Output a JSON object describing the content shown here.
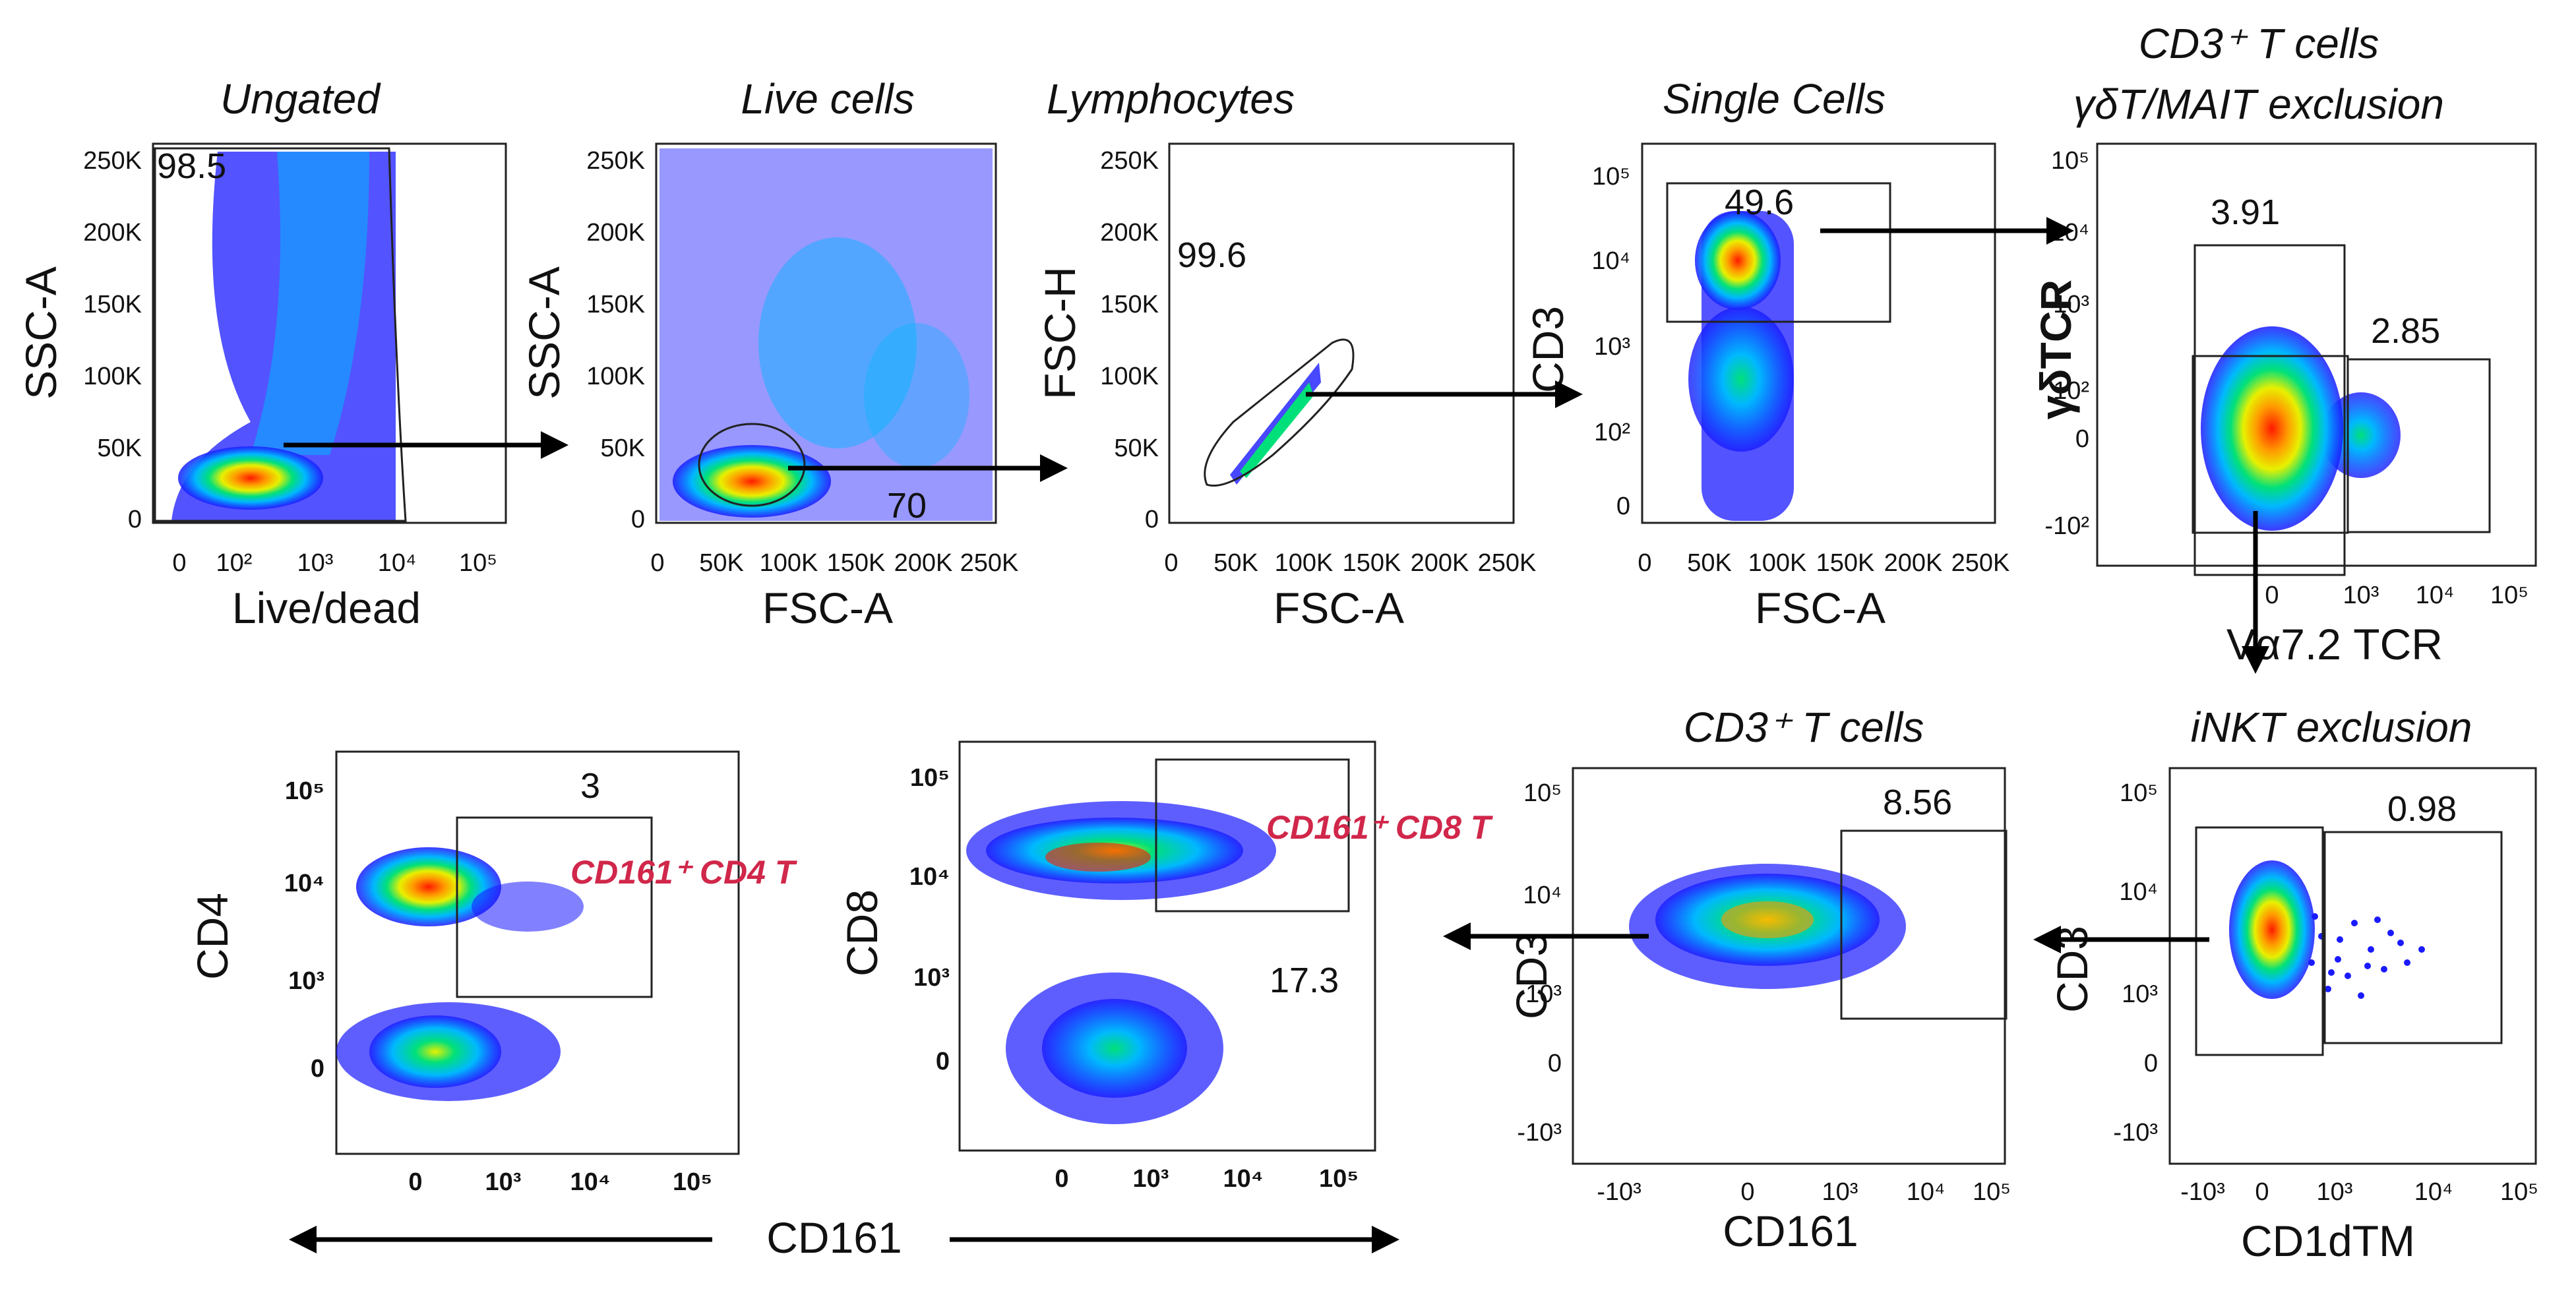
{
  "figure": {
    "panels": [
      {
        "id": "ungated",
        "title": "Ungated",
        "xlabel": "Live/dead",
        "ylabel": "SSC-A",
        "xticks": [
          "0",
          "10²",
          "10³",
          "10⁴",
          "10⁵"
        ],
        "yticks": [
          "0",
          "50K",
          "100K",
          "150K",
          "200K",
          "250K"
        ],
        "gates": [
          {
            "value": "98.5"
          }
        ]
      },
      {
        "id": "live",
        "title": "Live cells",
        "xlabel": "FSC-A",
        "ylabel": "SSC-A",
        "xticks": [
          "0",
          "50K",
          "100K",
          "150K",
          "200K",
          "250K"
        ],
        "yticks": [
          "0",
          "50K",
          "100K",
          "150K",
          "200K",
          "250K"
        ],
        "gates": [
          {
            "value": "70"
          }
        ]
      },
      {
        "id": "lymph",
        "title": "Lymphocytes",
        "xlabel": "FSC-A",
        "ylabel": "FSC-H",
        "xticks": [
          "0",
          "50K",
          "100K",
          "150K",
          "200K",
          "250K"
        ],
        "yticks": [
          "0",
          "50K",
          "100K",
          "150K",
          "200K",
          "250K"
        ],
        "gates": [
          {
            "value": "99.6"
          }
        ]
      },
      {
        "id": "single",
        "title": "Single Cells",
        "xlabel": "FSC-A",
        "ylabel": "CD3",
        "xticks": [
          "0",
          "50K",
          "100K",
          "150K",
          "200K",
          "250K"
        ],
        "yticks": [
          "0",
          "10²",
          "10³",
          "10⁴",
          "10⁵"
        ],
        "gates": [
          {
            "value": "49.6"
          }
        ]
      },
      {
        "id": "gdmait",
        "title_line1": "CD3⁺ T cells",
        "title_line2": "γδT/MAIT exclusion",
        "xlabel": "Vα7.2 TCR",
        "ylabel": "γδTCR",
        "xticks": [
          "0",
          "10³",
          "10⁴",
          "10⁵"
        ],
        "yticks": [
          "-10²",
          "0",
          "10²",
          "10³",
          "10⁴",
          "10⁵"
        ],
        "gates": [
          {
            "value": "3.91"
          },
          {
            "value": "2.85"
          }
        ]
      },
      {
        "id": "inkt",
        "title": "iNKT exclusion",
        "xlabel": "CD1dTM",
        "ylabel": "CD3",
        "xticks": [
          "-10³",
          "0",
          "10³",
          "10⁴",
          "10⁵"
        ],
        "yticks": [
          "-10³",
          "0",
          "10³",
          "10⁴",
          "10⁵"
        ],
        "gates": [
          {
            "value": "0.98"
          }
        ]
      },
      {
        "id": "cd3t",
        "title": "CD3⁺ T cells",
        "xlabel": "CD161",
        "ylabel": "CD3",
        "xticks": [
          "-10³",
          "0",
          "10³",
          "10⁴",
          "10⁵"
        ],
        "yticks": [
          "-10³",
          "0",
          "10³",
          "10⁴",
          "10⁵"
        ],
        "gates": [
          {
            "value": "8.56"
          }
        ]
      },
      {
        "id": "cd8",
        "xlabel": "",
        "ylabel": "CD8",
        "xticks": [
          "0",
          "10³",
          "10⁴",
          "10⁵"
        ],
        "yticks": [
          "0",
          "10³",
          "10⁴",
          "10⁵"
        ],
        "gates": [
          {
            "value": "17.3"
          }
        ],
        "population_label": "CD161⁺ CD8 T"
      },
      {
        "id": "cd4",
        "xlabel": "",
        "ylabel": "CD4",
        "xticks": [
          "0",
          "10³",
          "10⁴",
          "10⁵"
        ],
        "yticks": [
          "0",
          "10³",
          "10⁴",
          "10⁵"
        ],
        "gates": [
          {
            "value": "3"
          }
        ],
        "population_label": "CD161⁺ CD4 T"
      }
    ],
    "shared_xlabel": "CD161",
    "colors": {
      "density_low": "#1a1aff",
      "density_mid": "#00e07a",
      "density_high": "#ff1a00",
      "population_label": "#d0274a"
    }
  }
}
